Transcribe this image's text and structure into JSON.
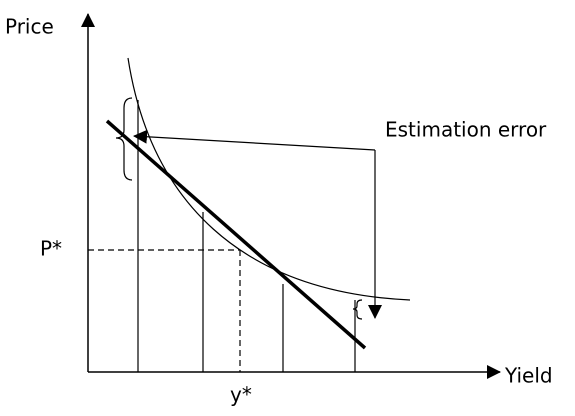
{
  "axes": {
    "y_label": "Price",
    "x_label": "Yield"
  },
  "markers": {
    "p_star": "P*",
    "y_star": "y*"
  },
  "annotation": "Estimation error"
}
